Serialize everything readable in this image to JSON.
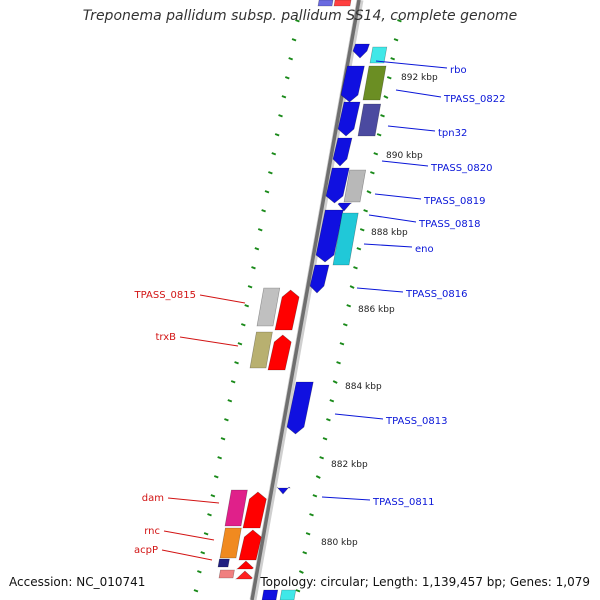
{
  "title": "Treponema pallidum subsp. pallidum SS14, complete genome",
  "footer": {
    "accession": "Accession: NC_010741",
    "summary": "Topology: circular; Length: 1,139,457 bp; Genes: 1,079"
  },
  "colors": {
    "forward_label": "#0a16d8",
    "reverse_label": "#d21414",
    "tick": "#1a8a1a"
  },
  "scale_labels": [
    {
      "text": "892 kbp",
      "bp": 892000
    },
    {
      "text": "890 kbp",
      "bp": 890000
    },
    {
      "text": "888 kbp",
      "bp": 888000
    },
    {
      "text": "886 kbp",
      "bp": 886000
    },
    {
      "text": "884 kbp",
      "bp": 884000
    },
    {
      "text": "882 kbp",
      "bp": 882000
    },
    {
      "text": "880 kbp",
      "bp": 880000
    }
  ],
  "forward_genes": [
    {
      "label": "rbo"
    },
    {
      "label": "TPASS_0822"
    },
    {
      "label": "tpn32"
    },
    {
      "label": "TPASS_0820"
    },
    {
      "label": "TPASS_0819"
    },
    {
      "label": "TPASS_0818"
    },
    {
      "label": "eno"
    },
    {
      "label": "TPASS_0816"
    },
    {
      "label": "TPASS_0813"
    },
    {
      "label": "TPASS_0811"
    }
  ],
  "reverse_genes": [
    {
      "label": "TPASS_0815"
    },
    {
      "label": "trxB"
    },
    {
      "label": "dam"
    },
    {
      "label": "rnc"
    },
    {
      "label": "acpP"
    }
  ]
}
